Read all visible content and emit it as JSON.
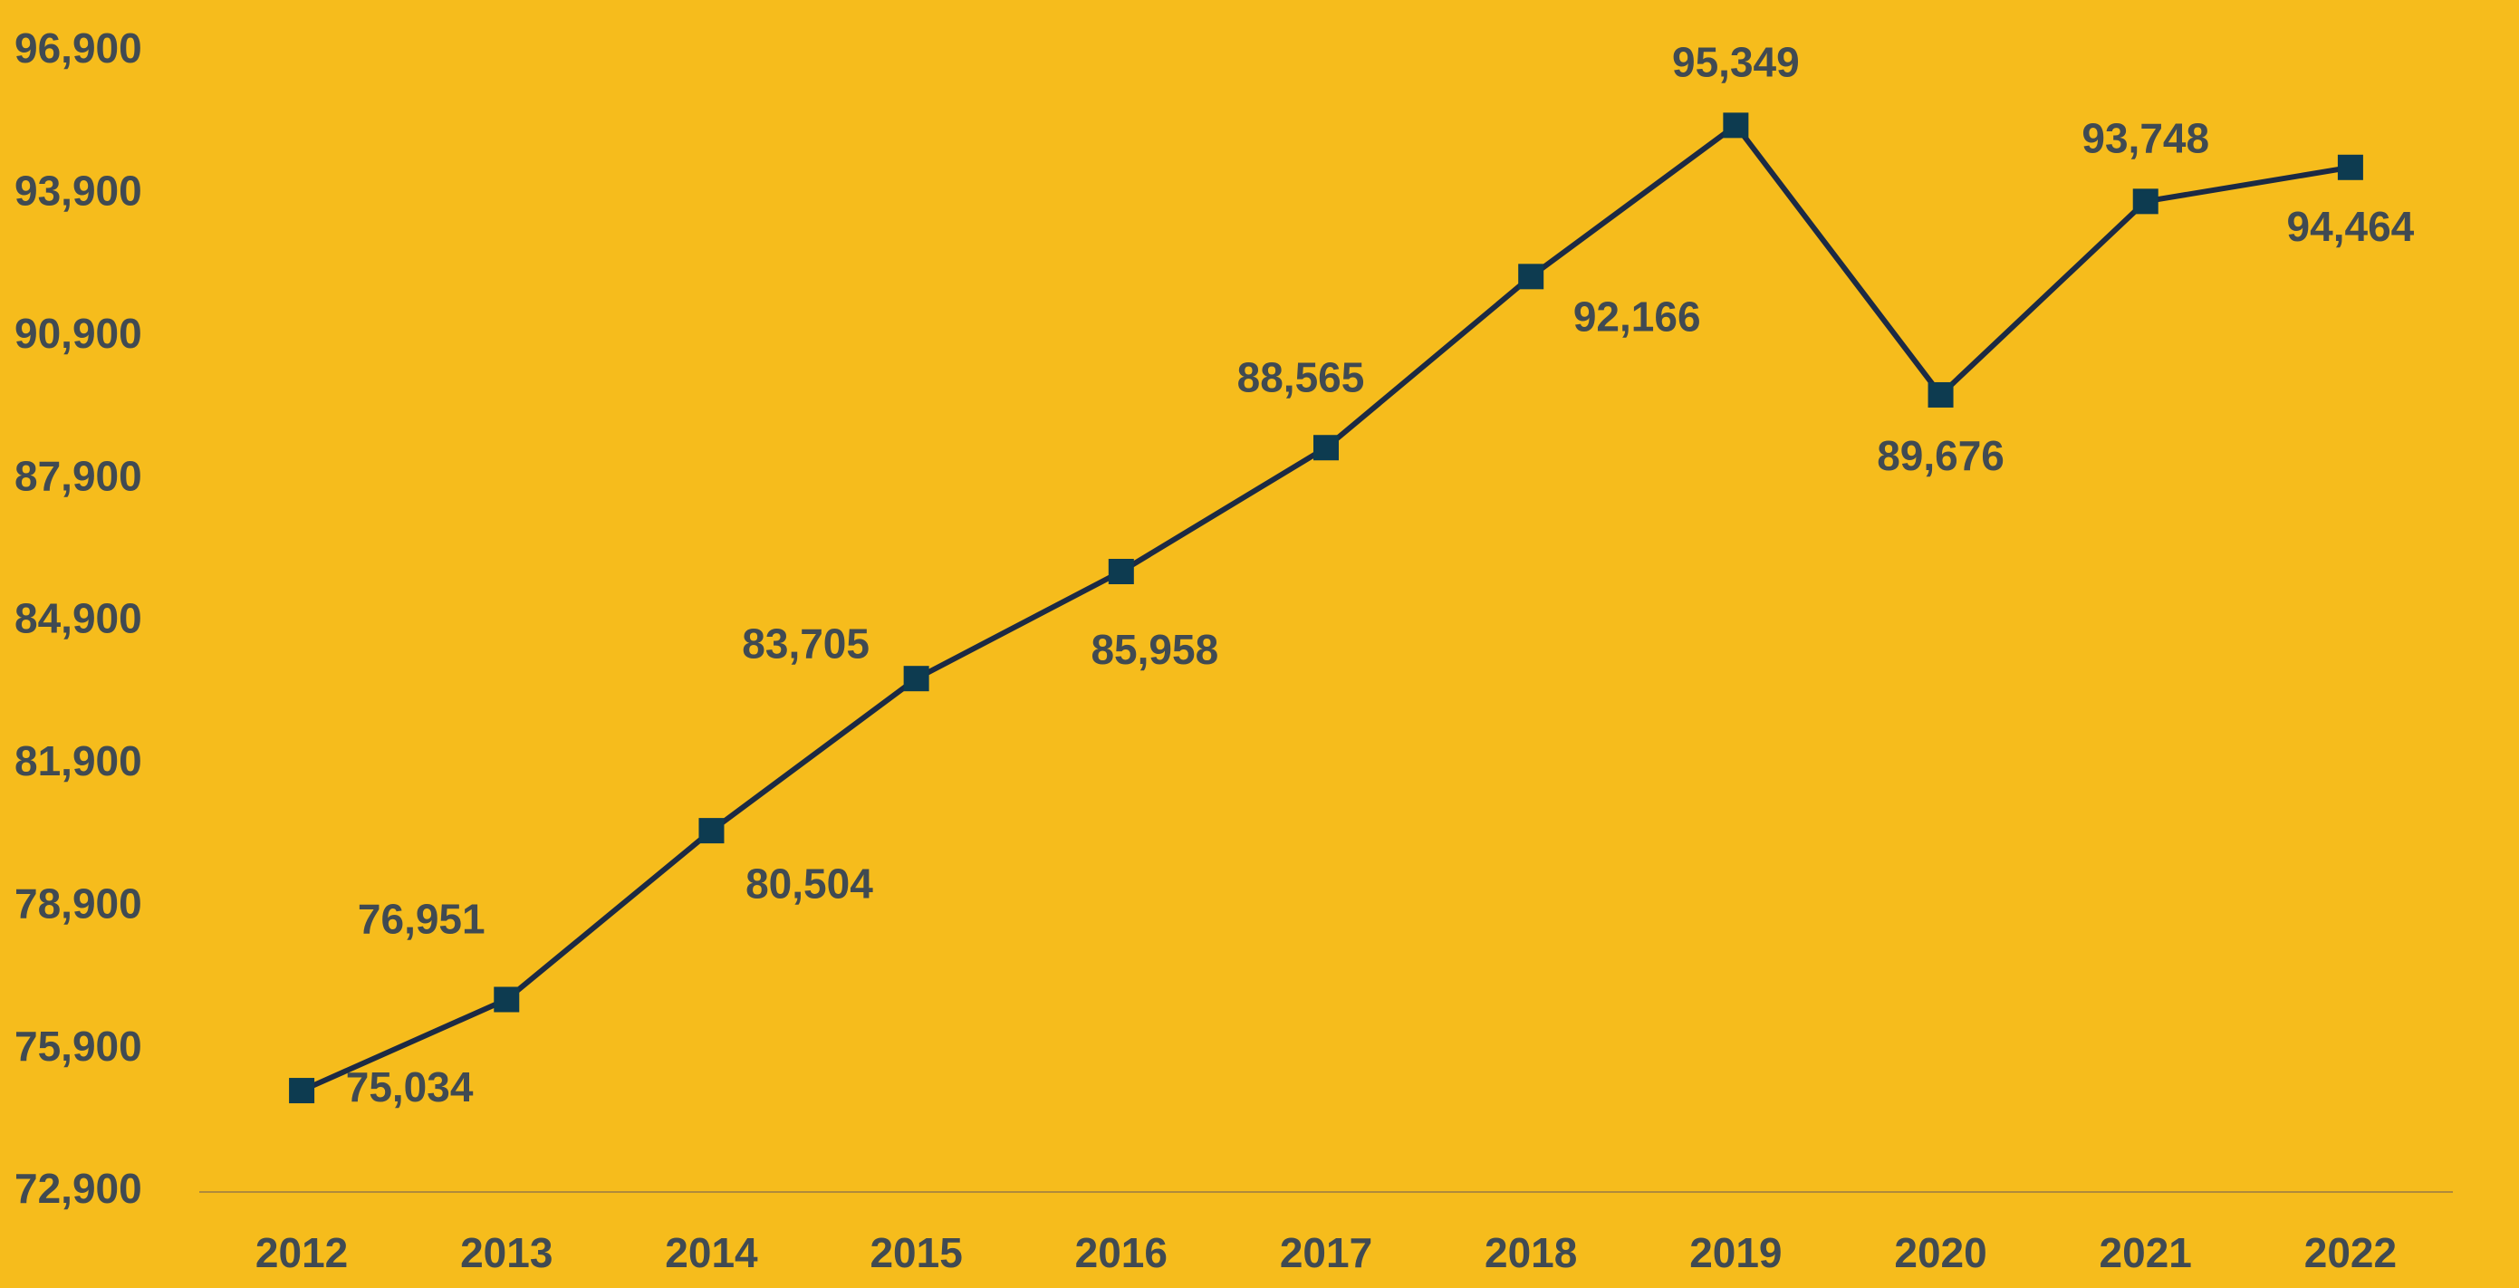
{
  "chart_data": {
    "type": "line",
    "categories": [
      "2012",
      "2013",
      "2014",
      "2015",
      "2016",
      "2017",
      "2018",
      "2019",
      "2020",
      "2021",
      "2022"
    ],
    "values": [
      75034,
      76951,
      80504,
      83705,
      85958,
      88565,
      92166,
      95349,
      89676,
      93748,
      94464
    ],
    "value_labels": [
      "75,034",
      "76,951",
      "80,504",
      "83,705",
      "85,958",
      "88,565",
      "92,166",
      "95,349",
      "89,676",
      "93,748",
      "94,464"
    ],
    "color": "#1c2a44",
    "marker_color": "#0d3b50",
    "ylim": [
      72900,
      96900
    ],
    "yticks": [
      {
        "value": 72900,
        "label": "72,900"
      },
      {
        "value": 75900,
        "label": "75,900"
      },
      {
        "value": 78900,
        "label": "78,900"
      },
      {
        "value": 81900,
        "label": "81,900"
      },
      {
        "value": 84900,
        "label": "84,900"
      },
      {
        "value": 87900,
        "label": "87,900"
      },
      {
        "value": 90900,
        "label": "90,900"
      },
      {
        "value": 93900,
        "label": "93,900"
      },
      {
        "value": 96900,
        "label": "96,900"
      }
    ],
    "grid": false
  }
}
